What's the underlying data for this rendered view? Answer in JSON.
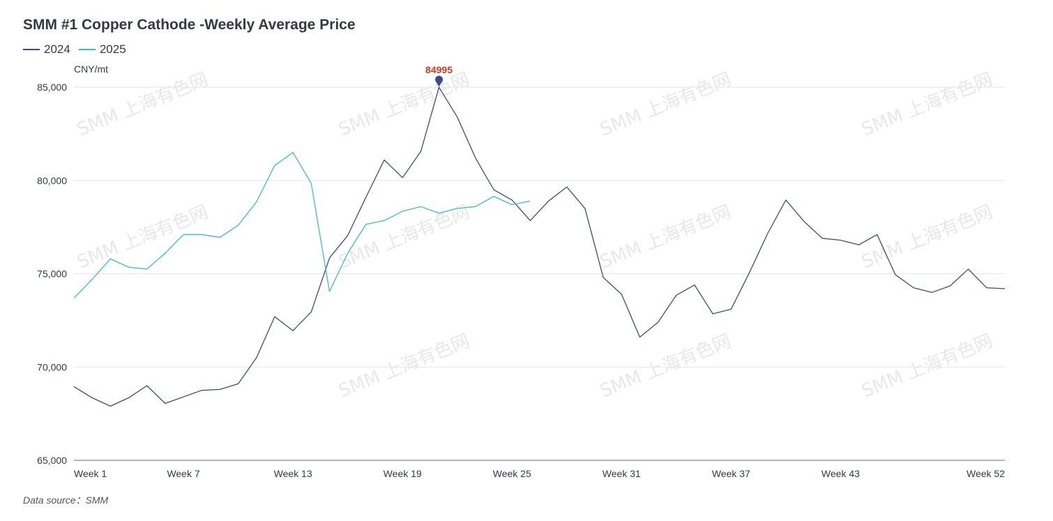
{
  "chart_data": {
    "type": "line",
    "title": "SMM #1 Copper Cathode -Weekly Average Price",
    "ylabel": "CNY/mt",
    "xlabel": "",
    "source": "Data source：SMM",
    "watermark": "SMM 上海有色网",
    "ylim": [
      65000,
      85000
    ],
    "yticks": [
      65000,
      70000,
      75000,
      80000,
      85000
    ],
    "ytick_labels": [
      "65,000",
      "70,000",
      "75,000",
      "80,000",
      "85,000"
    ],
    "xlim": [
      1,
      52
    ],
    "xticks": [
      1,
      7,
      13,
      19,
      25,
      31,
      37,
      43,
      52
    ],
    "xtick_labels": [
      "Week 1",
      "Week 7",
      "Week 13",
      "Week 19",
      "Week 25",
      "Week 31",
      "Week 37",
      "Week 43",
      "Week 52"
    ],
    "grid": true,
    "legend": "top-left",
    "series": [
      {
        "name": "2024",
        "color": "#3d4a8a",
        "values": [
          68950,
          68350,
          67900,
          68350,
          69000,
          68050,
          68400,
          68750,
          68800,
          69100,
          70500,
          72700,
          71950,
          72950,
          75850,
          77050,
          79100,
          81100,
          80150,
          81550,
          84995,
          83400,
          81200,
          79500,
          78950,
          77850,
          78900,
          79650,
          78500,
          74800,
          73900,
          71600,
          72400,
          73850,
          74400,
          72850,
          73100,
          75050,
          77150,
          78950,
          77800,
          76900,
          76800,
          76550,
          77100,
          74950,
          74250,
          74000,
          74350,
          75250,
          74250,
          74200
        ]
      },
      {
        "name": "2025",
        "color": "#3fb8c9",
        "values": [
          73700,
          74700,
          75800,
          75350,
          75250,
          76100,
          77100,
          77100,
          76950,
          77600,
          78850,
          80800,
          81500,
          79850,
          74050,
          76100,
          77650,
          77850,
          78350,
          78600,
          78250,
          78500,
          78600,
          79150,
          78700,
          78900
        ]
      }
    ],
    "annotation": {
      "series": "2024",
      "week": 21,
      "value": 84995,
      "label": "84995"
    }
  }
}
